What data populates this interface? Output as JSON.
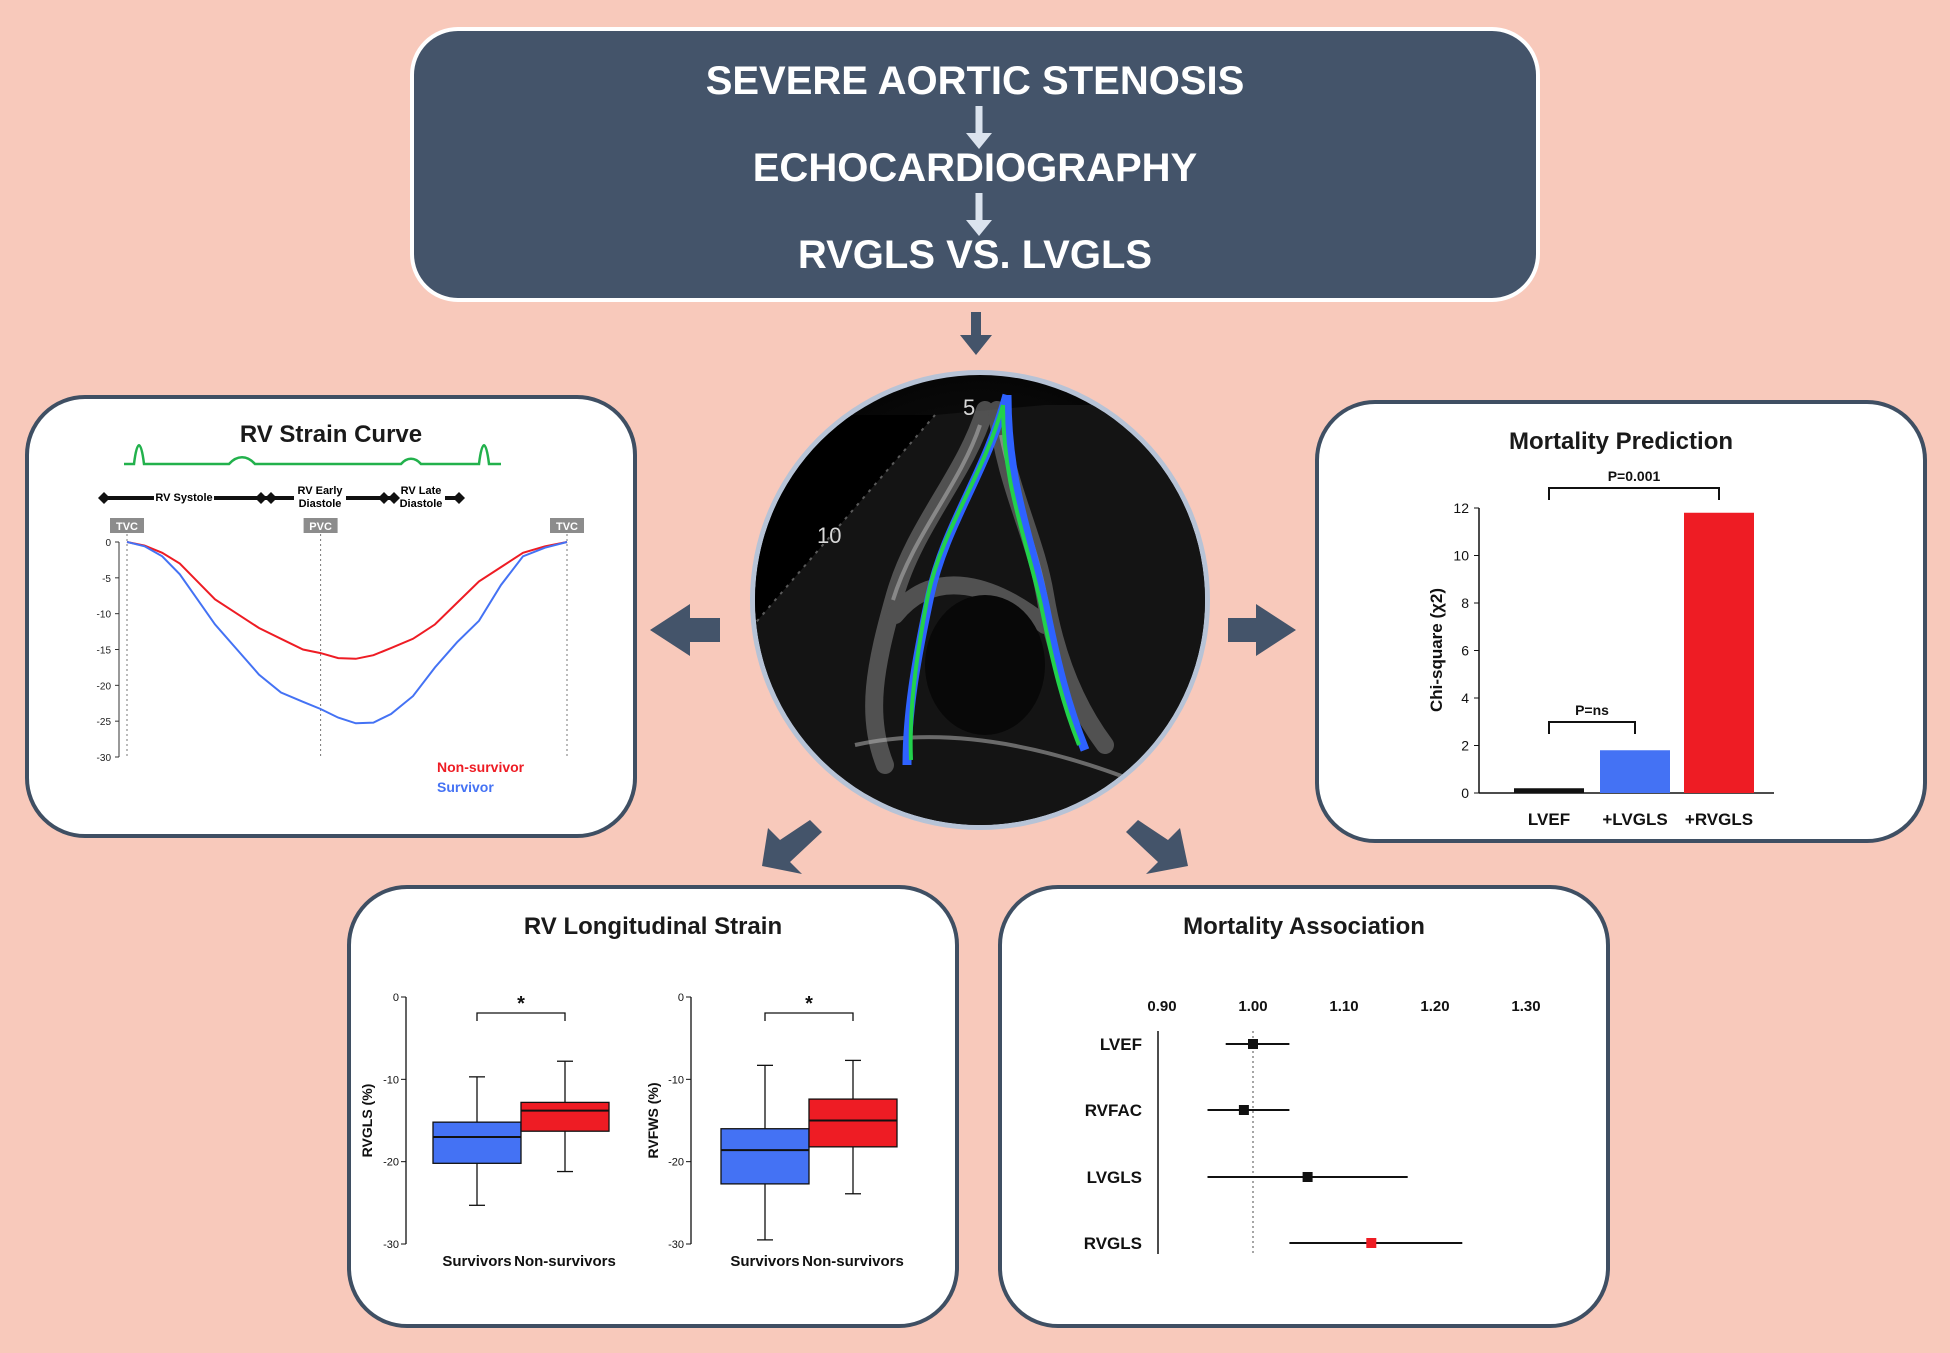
{
  "header": {
    "line1": "SEVERE AORTIC STENOSIS",
    "line2": "ECHOCARDIOGRAPHY",
    "line3": "RVGLS VS. LVGLS"
  },
  "colors": {
    "background": "#f8c9bb",
    "header_fill": "#44546a",
    "panel_border": "#3f4f63",
    "arrow": "#44546a",
    "red": "#ee1c24",
    "blue": "#4472f4",
    "green": "#22b14c"
  },
  "echo_image": {
    "segment_labels": [
      "5",
      "10"
    ]
  },
  "chart_data": [
    {
      "id": "rv-strain-curve",
      "type": "line",
      "title": "RV Strain Curve",
      "phase_labels": {
        "systole": "RV Systole",
        "early_diastole_1": "RV Early",
        "early_diastole_2": "Diastole",
        "late_diastole_1": "RV Late",
        "late_diastole_2": "Diastole"
      },
      "markers": [
        "TVC",
        "PVC",
        "TVC"
      ],
      "marker_x": [
        0,
        0.44,
        1.0
      ],
      "y_ticks": [
        "0",
        "-5",
        "-10",
        "-15",
        "-20",
        "-25",
        "-30"
      ],
      "ylim": [
        -30,
        0
      ],
      "x": [
        0,
        0.04,
        0.08,
        0.12,
        0.16,
        0.2,
        0.25,
        0.3,
        0.35,
        0.4,
        0.44,
        0.48,
        0.52,
        0.56,
        0.6,
        0.65,
        0.7,
        0.75,
        0.8,
        0.85,
        0.9,
        0.95,
        1.0
      ],
      "series": [
        {
          "name": "Non-survivor",
          "color": "#ee1c24",
          "values": [
            0,
            -0.5,
            -1.5,
            -3,
            -5.5,
            -8,
            -10,
            -12,
            -13.5,
            -15,
            -15.5,
            -16.2,
            -16.3,
            -15.8,
            -14.8,
            -13.5,
            -11.5,
            -8.5,
            -5.5,
            -3.5,
            -1.5,
            -0.6,
            0
          ]
        },
        {
          "name": "Survivor",
          "color": "#4472f4",
          "values": [
            0,
            -0.6,
            -2,
            -4.5,
            -8,
            -11.5,
            -15,
            -18.5,
            -21,
            -22.3,
            -23.3,
            -24.5,
            -25.3,
            -25.2,
            -24,
            -21.5,
            -17.5,
            -14,
            -11,
            -6,
            -2,
            -0.8,
            0
          ]
        }
      ]
    },
    {
      "id": "mortality-prediction",
      "type": "bar",
      "title": "Mortality Prediction",
      "ylabel": "Chi-square (χ2)",
      "categories": [
        "LVEF",
        "+LVGLS",
        "+RVGLS"
      ],
      "values": [
        0.2,
        1.8,
        11.8
      ],
      "colors": [
        "#111111",
        "#4472f4",
        "#ee1c24"
      ],
      "ylim": [
        0,
        12
      ],
      "y_ticks": [
        0,
        2,
        4,
        6,
        8,
        10,
        12
      ],
      "annotations": [
        {
          "from": 0,
          "to": 2,
          "label": "P=0.001"
        },
        {
          "from": 0,
          "to": 1,
          "label": "P=ns"
        }
      ]
    },
    {
      "id": "rv-longitudinal-strain",
      "type": "box",
      "title": "RV Longitudinal Strain",
      "plots": [
        {
          "ylabel": "RVGLS (%)",
          "ylim": [
            -30,
            0
          ],
          "y_ticks": [
            "0",
            "-10",
            "-20",
            "-30"
          ],
          "significance": "*",
          "groups": [
            {
              "name": "Survivors",
              "color": "#4472f4",
              "min": -25.3,
              "q1": -20.2,
              "median": -17,
              "q3": -15.2,
              "max": -9.7
            },
            {
              "name": "Non-survivors",
              "color": "#ee1c24",
              "min": -21.2,
              "q1": -16.3,
              "median": -13.8,
              "q3": -12.8,
              "max": -7.8
            }
          ]
        },
        {
          "ylabel": "RVFWS (%)",
          "ylim": [
            -30,
            0
          ],
          "y_ticks": [
            "0",
            "-10",
            "-20",
            "-30"
          ],
          "significance": "*",
          "groups": [
            {
              "name": "Survivors",
              "color": "#4472f4",
              "min": -29.5,
              "q1": -22.7,
              "median": -18.6,
              "q3": -16,
              "max": -8.3
            },
            {
              "name": "Non-survivors",
              "color": "#ee1c24",
              "min": -23.9,
              "q1": -18.2,
              "median": -15,
              "q3": -12.4,
              "max": -7.7
            }
          ]
        }
      ]
    },
    {
      "id": "mortality-association",
      "type": "forest",
      "title": "Mortality Association",
      "x_ticks": [
        "0.90",
        "1.00",
        "1.10",
        "1.20",
        "1.30"
      ],
      "xlim": [
        0.9,
        1.3
      ],
      "reference": 1.0,
      "rows": [
        {
          "label": "LVEF",
          "estimate": 1.0,
          "lower": 0.97,
          "upper": 1.04,
          "color": "#111111"
        },
        {
          "label": "RVFAC",
          "estimate": 0.99,
          "lower": 0.95,
          "upper": 1.04,
          "color": "#111111"
        },
        {
          "label": "LVGLS",
          "estimate": 1.06,
          "lower": 0.95,
          "upper": 1.17,
          "color": "#111111"
        },
        {
          "label": "RVGLS",
          "estimate": 1.13,
          "lower": 1.04,
          "upper": 1.23,
          "color": "#ee1c24"
        }
      ]
    }
  ]
}
